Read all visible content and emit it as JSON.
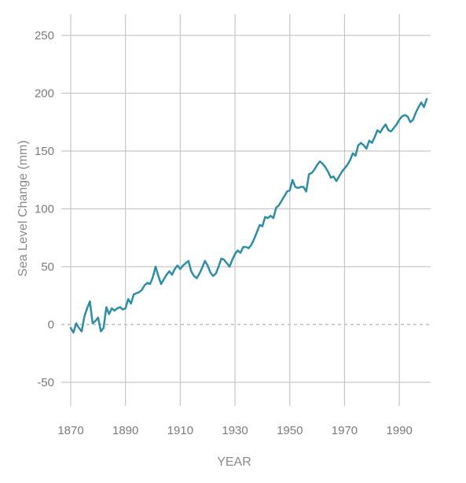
{
  "chart_data": {
    "type": "line",
    "title": "",
    "xlabel": "YEAR",
    "ylabel": "Sea Level Change (mm)",
    "xlim": [
      1870,
      2000
    ],
    "ylim": [
      -60,
      270
    ],
    "x_ticks": [
      1870,
      1890,
      1910,
      1930,
      1950,
      1970,
      1990
    ],
    "y_ticks": [
      -50,
      0,
      50,
      100,
      150,
      200,
      250
    ],
    "grid": "both",
    "baseline": 0,
    "colors": {
      "line": "#2b8ea3",
      "grid": "#c7c7c7",
      "baseline": "#bdbdbd"
    },
    "series": [
      {
        "x": [
          1870,
          1871,
          1872,
          1873,
          1874,
          1875,
          1876,
          1877,
          1878,
          1879,
          1880,
          1881,
          1882,
          1883,
          1884,
          1885,
          1886,
          1887,
          1888,
          1889,
          1890,
          1891,
          1892,
          1893,
          1894,
          1895,
          1896,
          1897,
          1898,
          1899,
          1900,
          1901,
          1902,
          1903,
          1904,
          1905,
          1906,
          1907,
          1908,
          1909,
          1910,
          1911,
          1912,
          1913,
          1914,
          1915,
          1916,
          1917,
          1918,
          1919,
          1920,
          1921,
          1922,
          1923,
          1924,
          1925,
          1926,
          1927,
          1928,
          1929,
          1930,
          1931,
          1932,
          1933,
          1934,
          1935,
          1936,
          1937,
          1938,
          1939,
          1940,
          1941,
          1942,
          1943,
          1944,
          1945,
          1946,
          1947,
          1948,
          1949,
          1950,
          1951,
          1952,
          1953,
          1954,
          1955,
          1956,
          1957,
          1958,
          1959,
          1960,
          1961,
          1962,
          1963,
          1964,
          1965,
          1966,
          1967,
          1968,
          1969,
          1970,
          1971,
          1972,
          1973,
          1974,
          1975,
          1976,
          1977,
          1978,
          1979,
          1980,
          1981,
          1982,
          1983,
          1984,
          1985,
          1986,
          1987,
          1988,
          1989,
          1990,
          1991,
          1992,
          1993,
          1994,
          1995,
          1996,
          1997,
          1998,
          1999,
          2000
        ],
        "values": [
          -3,
          -7,
          1,
          -3,
          -6,
          7,
          14,
          20,
          1,
          3,
          6,
          -6,
          -3,
          15,
          9,
          14,
          12,
          14,
          15,
          13,
          14,
          22,
          18,
          26,
          27,
          28,
          30,
          34,
          36,
          35,
          41,
          50,
          42,
          35,
          39,
          43,
          46,
          43,
          48,
          51,
          48,
          51,
          53,
          55,
          46,
          42,
          40,
          44,
          49,
          55,
          51,
          45,
          42,
          44,
          50,
          57,
          56,
          53,
          50,
          56,
          61,
          64,
          62,
          67,
          67,
          66,
          69,
          74,
          80,
          86,
          85,
          93,
          92,
          94,
          92,
          101,
          103,
          107,
          111,
          115,
          116,
          125,
          119,
          118,
          119,
          119,
          115,
          130,
          131,
          134,
          138,
          141,
          139,
          136,
          132,
          127,
          128,
          124,
          128,
          132,
          135,
          138,
          142,
          148,
          146,
          155,
          157,
          155,
          152,
          159,
          157,
          162,
          168,
          166,
          170,
          173,
          168,
          167,
          170,
          173,
          177,
          180,
          181,
          180,
          175,
          177,
          183,
          188,
          192,
          188,
          195
        ]
      }
    ]
  }
}
